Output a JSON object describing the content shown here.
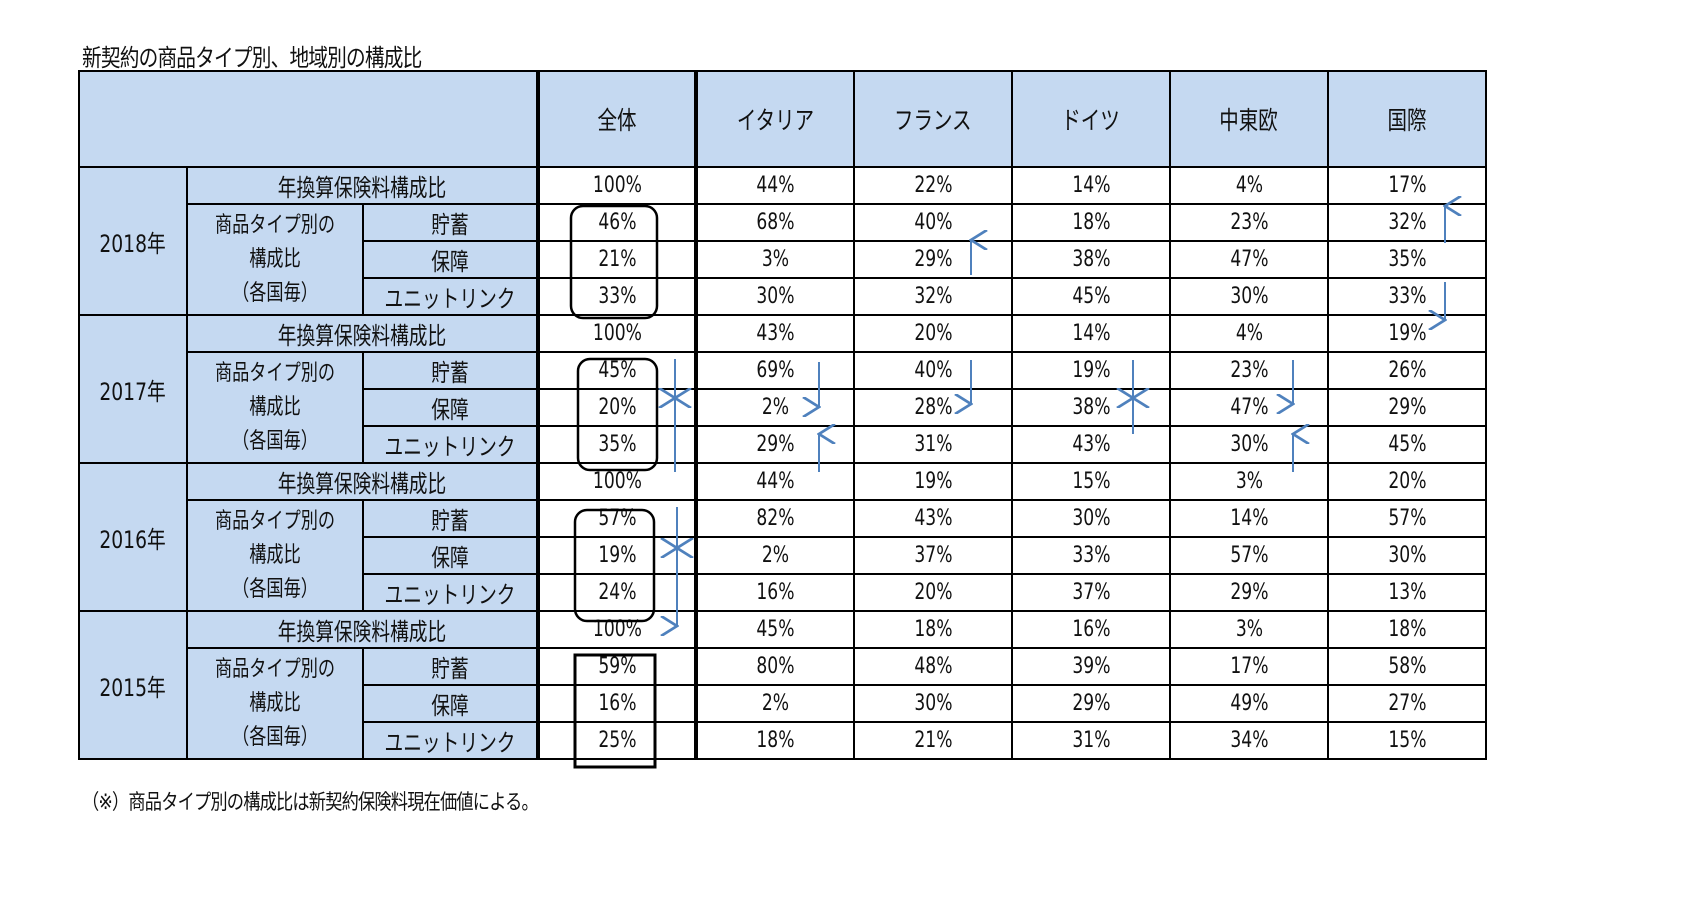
{
  "title": "新契約の商品タイプ別、地域別の構成比",
  "footnote": "（※）商品タイプ別の構成比は新契約保険料現在価値による。",
  "columns": [
    "全体",
    "イタリア",
    "フランス",
    "ドイツ",
    "中東欧",
    "国際"
  ],
  "row_labels": {
    "main": "年換算保険料構成比",
    "group_line1": "商品タイプ別の",
    "group_line2": "構成比",
    "group_line3": "（各国毎）",
    "savings": "貯蓄",
    "protection": "保障",
    "unit_linked": "ユニットリンク"
  },
  "years": [
    {
      "label": "2018年",
      "main": [
        "100%",
        "44%",
        "22%",
        "14%",
        "4%",
        "17%"
      ],
      "savings": [
        "46%",
        "68%",
        "40%",
        "18%",
        "23%",
        "32%"
      ],
      "protection": [
        "21%",
        "3%",
        "29%",
        "38%",
        "47%",
        "35%"
      ],
      "unit_linked": [
        "33%",
        "30%",
        "32%",
        "45%",
        "30%",
        "33%"
      ]
    },
    {
      "label": "2017年",
      "main": [
        "100%",
        "43%",
        "20%",
        "14%",
        "4%",
        "19%"
      ],
      "savings": [
        "45%",
        "69%",
        "40%",
        "19%",
        "23%",
        "26%"
      ],
      "protection": [
        "20%",
        "2%",
        "28%",
        "38%",
        "47%",
        "29%"
      ],
      "unit_linked": [
        "35%",
        "29%",
        "31%",
        "43%",
        "30%",
        "45%"
      ]
    },
    {
      "label": "2016年",
      "main": [
        "100%",
        "44%",
        "19%",
        "15%",
        "3%",
        "20%"
      ],
      "savings": [
        "57%",
        "82%",
        "43%",
        "30%",
        "14%",
        "57%"
      ],
      "protection": [
        "19%",
        "2%",
        "37%",
        "33%",
        "57%",
        "30%"
      ],
      "unit_linked": [
        "24%",
        "16%",
        "20%",
        "37%",
        "29%",
        "13%"
      ]
    },
    {
      "label": "2015年",
      "main": [
        "100%",
        "45%",
        "18%",
        "16%",
        "3%",
        "18%"
      ],
      "savings": [
        "59%",
        "80%",
        "48%",
        "39%",
        "17%",
        "58%"
      ],
      "protection": [
        "16%",
        "2%",
        "30%",
        "29%",
        "49%",
        "27%"
      ],
      "unit_linked": [
        "25%",
        "18%",
        "21%",
        "31%",
        "34%",
        "15%"
      ]
    }
  ],
  "colors": {
    "header_bg": "#c5d9f1",
    "arrow": "#4f81bd",
    "border": "#000000"
  }
}
